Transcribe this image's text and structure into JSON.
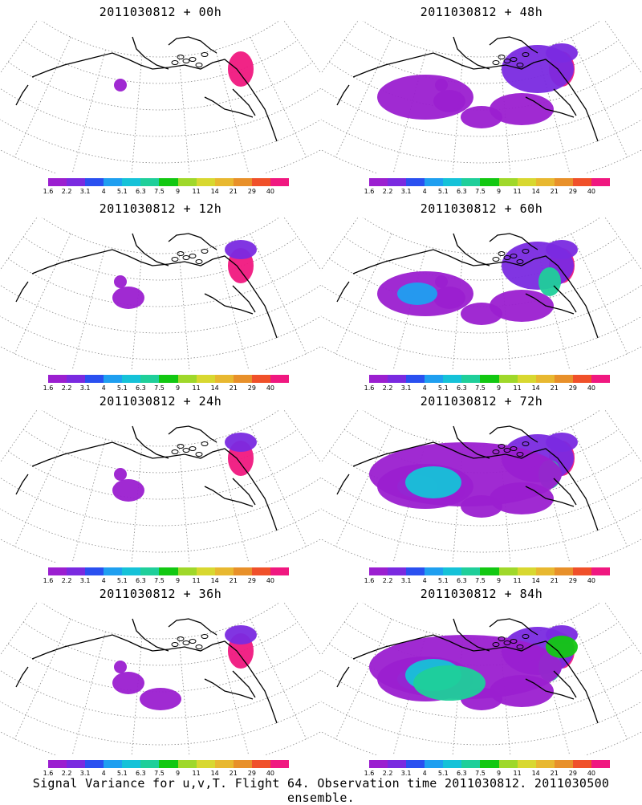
{
  "panels": [
    {
      "title": "2011030812 + 00h",
      "level": 0
    },
    {
      "title": "2011030812 + 48h",
      "level": 3
    },
    {
      "title": "2011030812 + 12h",
      "level": 1
    },
    {
      "title": "2011030812 + 60h",
      "level": 4
    },
    {
      "title": "2011030812 + 24h",
      "level": 1
    },
    {
      "title": "2011030812 + 72h",
      "level": 5
    },
    {
      "title": "2011030812 + 36h",
      "level": 2
    },
    {
      "title": "2011030812 + 84h",
      "level": 6
    }
  ],
  "colorbar": {
    "labels": [
      "1.6",
      "2.2",
      "3.1",
      "4",
      "5.1",
      "6.3",
      "7.5",
      "9",
      "11",
      "14",
      "21",
      "29",
      "40"
    ],
    "colors": [
      "#9b1fd0",
      "#7a2ae0",
      "#2a50f0",
      "#1f9ff0",
      "#15c2d8",
      "#1fcf9a",
      "#12c812",
      "#9fd82a",
      "#d8d830",
      "#e8b830",
      "#e8902a",
      "#f0502a",
      "#f01880"
    ]
  },
  "caption": "Signal Variance for u,v,T. Flight 64. Observation time 2011030812. 2011030500 ensemble."
}
